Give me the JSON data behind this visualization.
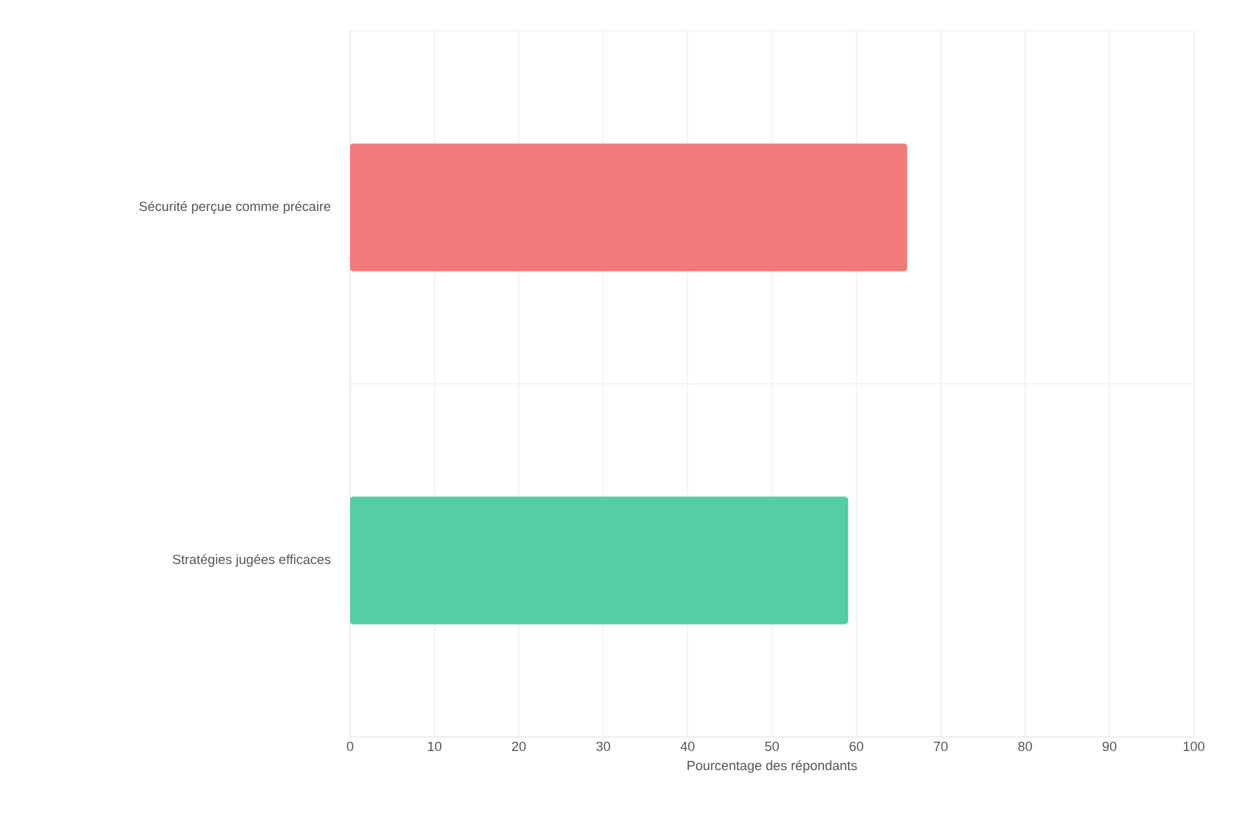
{
  "chart_data": {
    "type": "bar",
    "orientation": "horizontal",
    "categories": [
      "Sécurité perçue comme précaire",
      "Stratégies jugées efficaces"
    ],
    "values": [
      66,
      59
    ],
    "colors": [
      "#f27a7a",
      "#55cda5"
    ],
    "xlabel": "Pourcentage des répondants",
    "xlim": [
      0,
      100
    ],
    "xticks": [
      0,
      10,
      20,
      30,
      40,
      50,
      60,
      70,
      80,
      90,
      100
    ],
    "grid": true
  }
}
